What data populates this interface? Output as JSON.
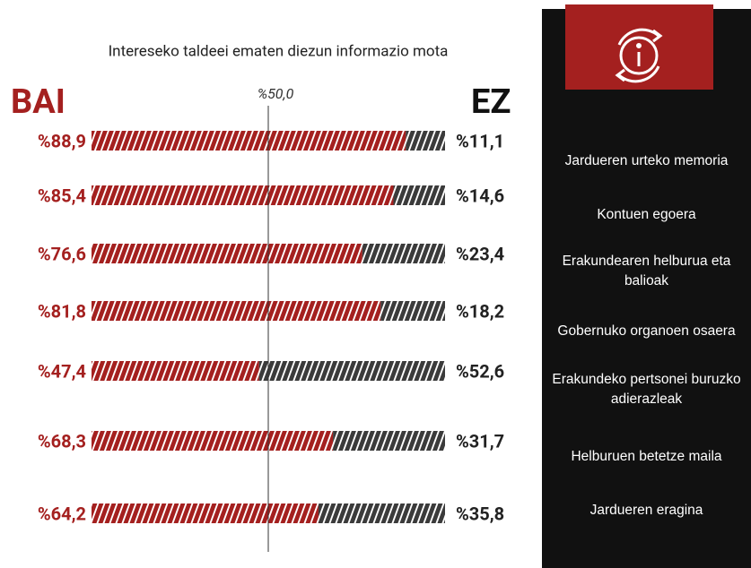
{
  "chart_data": {
    "type": "bar",
    "title": "Intereseko taldeei ematen diezun informazio mota",
    "categories": [
      "Jardueren urteko memoria",
      "Kontuen egoera",
      "Erakundearen helburua eta balioak",
      "Gobernuko organoen osaera",
      "Erakundeko pertsonei buruzko adierazleak",
      "Helburuen betetze maila",
      "Jardueren eragina"
    ],
    "series": [
      {
        "name": "BAI",
        "color": "#a4201f",
        "values": [
          88.9,
          85.4,
          76.6,
          81.8,
          47.4,
          68.3,
          64.2
        ],
        "value_labels": [
          "%88,9",
          "%85,4",
          "%76,6",
          "%81,8",
          "%47,4",
          "%68,3",
          "%64,2"
        ]
      },
      {
        "name": "EZ",
        "color": "#3b3b3b",
        "values": [
          11.1,
          14.6,
          23.4,
          18.2,
          52.6,
          31.7,
          35.8
        ],
        "value_labels": [
          "%11,1",
          "%14,6",
          "%23,4",
          "%18,2",
          "%52,6",
          "%31,7",
          "%35,8"
        ]
      }
    ],
    "xlim": [
      0,
      100
    ],
    "xticks": [
      {
        "value": 50,
        "label": "%50,0"
      }
    ]
  }
}
